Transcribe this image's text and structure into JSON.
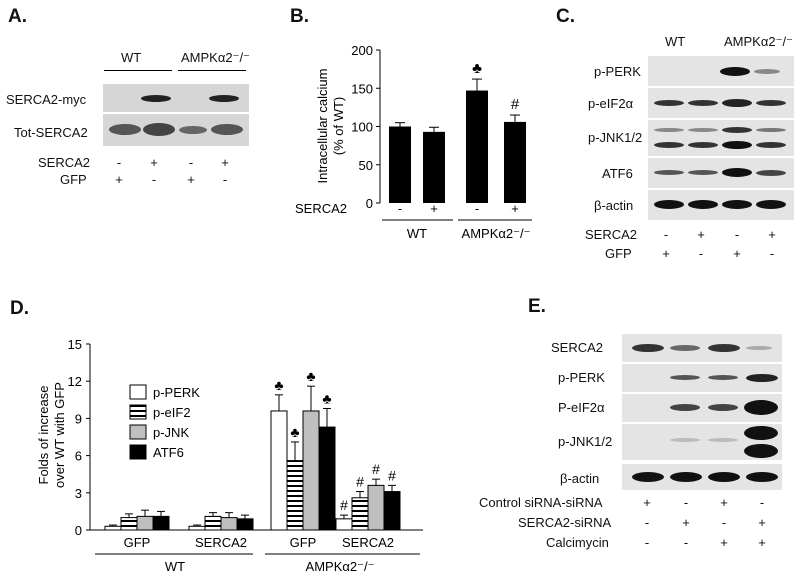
{
  "panels": {
    "A": {
      "label": "A.",
      "groups": [
        "WT",
        "AMPKα2⁻/⁻"
      ],
      "blots": [
        "SERCA2-myc",
        "Tot-SERCA2"
      ],
      "conditions": [
        {
          "name": "SERCA2",
          "signs": [
            "-",
            "+",
            "-",
            "+"
          ]
        },
        {
          "name": "GFP",
          "signs": [
            "+",
            "-",
            "+",
            "-"
          ]
        }
      ]
    },
    "B": {
      "label": "B.",
      "ylabel_line1": "Intracellular calcium",
      "ylabel_line2": "(% of WT)",
      "yticks": [
        "0",
        "50",
        "100",
        "150",
        "200"
      ],
      "condition_label": "SERCA2",
      "condition_signs": [
        "-",
        "+",
        "-",
        "+"
      ],
      "groups": [
        "WT",
        "AMPKα2⁻/⁻"
      ],
      "markers": [
        "♣",
        "#"
      ]
    },
    "C": {
      "label": "C.",
      "groups": [
        "WT",
        "AMPKα2⁻/⁻"
      ],
      "blots": [
        "p-PERK",
        "p-eIF2α",
        "p-JNK1/2",
        "ATF6",
        "β-actin"
      ],
      "conditions": [
        {
          "name": "SERCA2",
          "signs": [
            "-",
            "+",
            "-",
            "+"
          ]
        },
        {
          "name": "GFP",
          "signs": [
            "+",
            "-",
            "+",
            "-"
          ]
        }
      ]
    },
    "D": {
      "label": "D.",
      "ylabel_line1": "Folds of increase",
      "ylabel_line2": "over WT with GFP",
      "yticks": [
        "0",
        "3",
        "6",
        "9",
        "12",
        "15"
      ],
      "legend": [
        "p-PERK",
        "p-eIF2",
        "p-JNK",
        "ATF6"
      ],
      "subgroups": [
        "GFP",
        "SERCA2",
        "GFP",
        "SERCA2"
      ],
      "groups": [
        "WT",
        "AMPKα2⁻/⁻"
      ],
      "markers": [
        "♣",
        "#"
      ]
    },
    "E": {
      "label": "E.",
      "blots": [
        "SERCA2",
        "p-PERK",
        "P-eIF2α",
        "p-JNK1/2",
        "β-actin"
      ],
      "conditions": [
        {
          "name": "Control siRNA-siRNA",
          "signs": [
            "+",
            "-",
            "+",
            "-"
          ]
        },
        {
          "name": "SERCA2-siRNA",
          "signs": [
            "-",
            "+",
            "-",
            "+"
          ]
        },
        {
          "name": "Calcimycin",
          "signs": [
            "-",
            "-",
            "+",
            "+"
          ]
        }
      ]
    }
  },
  "chart_data": [
    {
      "panel": "B",
      "type": "bar",
      "categories": [
        "WT / SERCA2 -",
        "WT / SERCA2 +",
        "AMPKα2⁻/⁻ / SERCA2 -",
        "AMPKα2⁻/⁻ / SERCA2 +"
      ],
      "values": [
        100,
        93,
        147,
        106
      ],
      "errors": [
        5,
        6,
        15,
        9
      ],
      "markers": [
        "",
        "",
        "♣",
        "#"
      ],
      "ylabel": "Intracellular calcium (% of WT)",
      "ylim": [
        0,
        200
      ],
      "color": "#000000"
    },
    {
      "panel": "D",
      "type": "bar",
      "categories": [
        "WT GFP",
        "WT SERCA2",
        "AMPKα2⁻/⁻ GFP",
        "AMPKα2⁻/⁻ SERCA2"
      ],
      "series": [
        {
          "name": "p-PERK",
          "values": [
            0.3,
            0.3,
            9.6,
            0.9
          ],
          "errors": [
            0.1,
            0.1,
            1.3,
            0.3
          ],
          "markers": [
            "",
            "",
            "♣",
            "#"
          ]
        },
        {
          "name": "p-eIF2",
          "values": [
            1.0,
            1.1,
            5.6,
            2.6
          ],
          "errors": [
            0.3,
            0.3,
            1.5,
            0.5
          ],
          "markers": [
            "",
            "",
            "♣",
            "#"
          ]
        },
        {
          "name": "p-JNK",
          "values": [
            1.1,
            1.0,
            9.6,
            3.6
          ],
          "errors": [
            0.5,
            0.4,
            2.0,
            0.5
          ],
          "markers": [
            "",
            "",
            "♣",
            "#"
          ]
        },
        {
          "name": "ATF6",
          "values": [
            1.1,
            0.9,
            8.3,
            3.1
          ],
          "errors": [
            0.4,
            0.3,
            1.5,
            0.5
          ],
          "markers": [
            "",
            "",
            "♣",
            "#"
          ]
        }
      ],
      "series_fills": [
        "white",
        "stripes",
        "#bfbfbf",
        "#000000"
      ],
      "ylabel": "Folds of increase over WT with GFP",
      "ylim": [
        0,
        15
      ],
      "legend_position": "upper-left"
    }
  ]
}
